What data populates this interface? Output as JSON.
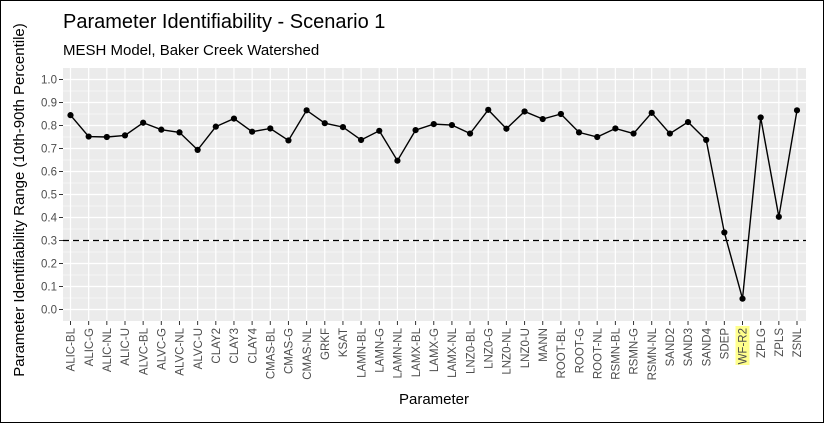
{
  "chart_data": {
    "type": "line",
    "title": "Parameter Identifiability - Scenario 1",
    "subtitle": "MESH Model, Baker Creek Watershed",
    "xlabel": "Parameter",
    "ylabel": "Parameter Identifiability Range (10th-90th Percentile)",
    "ylim": [
      0,
      1.0
    ],
    "yticks": [
      "0.0",
      "0.1",
      "0.2",
      "0.3",
      "0.4",
      "0.5",
      "0.6",
      "0.7",
      "0.8",
      "0.9",
      "1.0"
    ],
    "categories": [
      "ALIC-BL",
      "ALIC-G",
      "ALIC-NL",
      "ALIC-U",
      "ALVC-BL",
      "ALVC-G",
      "ALVC-NL",
      "ALVC-U",
      "CLAY2",
      "CLAY3",
      "CLAY4",
      "CMAS-BL",
      "CMAS-G",
      "CMAS-NL",
      "GRKF",
      "KSAT",
      "LAMN-BL",
      "LAMN-G",
      "LAMN-NL",
      "LAMX-BL",
      "LAMX-G",
      "LAMX-NL",
      "LNZ0-BL",
      "LNZ0-G",
      "LNZ0-NL",
      "LNZ0-U",
      "MANN",
      "ROOT-BL",
      "ROOT-G",
      "ROOT-NL",
      "RSMN-BL",
      "RSMN-G",
      "RSMN-NL",
      "SAND2",
      "SAND3",
      "SAND4",
      "SDEP",
      "WF-R2",
      "ZPLG",
      "ZPLS",
      "ZSNL"
    ],
    "values": [
      0.845,
      0.752,
      0.75,
      0.757,
      0.812,
      0.782,
      0.77,
      0.694,
      0.795,
      0.83,
      0.773,
      0.787,
      0.735,
      0.866,
      0.81,
      0.793,
      0.737,
      0.777,
      0.647,
      0.78,
      0.806,
      0.802,
      0.765,
      0.868,
      0.786,
      0.861,
      0.828,
      0.85,
      0.77,
      0.75,
      0.787,
      0.765,
      0.855,
      0.765,
      0.815,
      0.737,
      0.335,
      0.047,
      0.835,
      0.403,
      0.866
    ],
    "reference_line": 0.3,
    "highlighted_category": "WF-R2",
    "grid": true,
    "legend": "none",
    "colors": {
      "panel": "#ebebeb",
      "grid": "#ffffff",
      "line": "#000000",
      "highlight": "#ffff8c"
    }
  }
}
